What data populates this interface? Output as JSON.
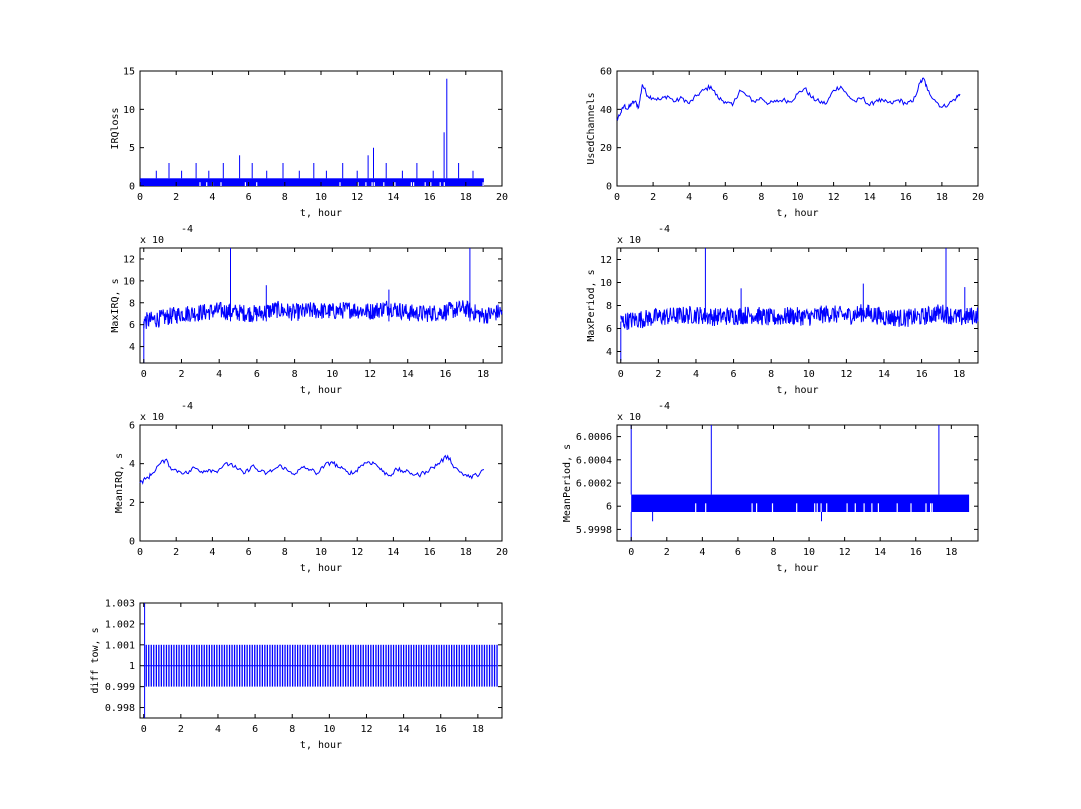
{
  "chart_data": [
    {
      "id": "irq-loss",
      "type": "line",
      "xlabel": "t, hour",
      "ylabel": "IRQloss",
      "exponent_label": "",
      "xlim": [
        0,
        20
      ],
      "ylim": [
        0,
        15
      ],
      "xticks": [
        0,
        2,
        4,
        6,
        8,
        10,
        12,
        14,
        16,
        18,
        20
      ],
      "yticks": [
        0,
        5,
        10,
        15
      ],
      "ytick_labels": [
        "0",
        "5",
        "10",
        "15"
      ],
      "x_end": 19,
      "band": [
        0,
        1
      ],
      "spikes": [
        [
          0.9,
          2
        ],
        [
          1.6,
          3
        ],
        [
          2.3,
          2
        ],
        [
          3.1,
          3
        ],
        [
          3.8,
          2
        ],
        [
          4.6,
          3
        ],
        [
          5.5,
          4
        ],
        [
          6.2,
          3
        ],
        [
          7.0,
          2
        ],
        [
          7.9,
          3
        ],
        [
          8.8,
          2
        ],
        [
          9.6,
          3
        ],
        [
          10.3,
          2
        ],
        [
          11.2,
          3
        ],
        [
          12.0,
          2
        ],
        [
          12.6,
          4
        ],
        [
          12.9,
          5
        ],
        [
          13.6,
          3
        ],
        [
          14.5,
          2
        ],
        [
          15.3,
          3
        ],
        [
          16.2,
          2
        ],
        [
          16.8,
          7
        ],
        [
          16.95,
          14
        ],
        [
          17.6,
          3
        ],
        [
          18.4,
          2
        ]
      ]
    },
    {
      "id": "used-channels",
      "type": "line",
      "xlabel": "t, hour",
      "ylabel": "UsedChannels",
      "exponent_label": "",
      "xlim": [
        0,
        20
      ],
      "ylim": [
        0,
        60
      ],
      "xticks": [
        0,
        2,
        4,
        6,
        8,
        10,
        12,
        14,
        16,
        18,
        20
      ],
      "yticks": [
        0,
        20,
        40,
        60
      ],
      "ytick_labels": [
        "0",
        "20",
        "40",
        "60"
      ],
      "x": [
        0,
        0.2,
        0.4,
        0.6,
        0.8,
        1.0,
        1.2,
        1.4,
        1.7,
        2.0,
        2.4,
        2.8,
        3.2,
        3.6,
        4.0,
        4.4,
        4.8,
        5.2,
        5.6,
        6.0,
        6.4,
        6.8,
        7.2,
        7.6,
        8.0,
        8.4,
        8.8,
        9.2,
        9.6,
        10.0,
        10.4,
        10.8,
        11.2,
        11.6,
        12.0,
        12.4,
        12.8,
        13.2,
        13.6,
        14.0,
        14.4,
        14.8,
        15.2,
        15.6,
        16.0,
        16.4,
        16.8,
        17.0,
        17.2,
        17.6,
        18.0,
        18.4,
        18.8,
        19.0
      ],
      "y": [
        35,
        38,
        42,
        40,
        43,
        44,
        41,
        53,
        47,
        46,
        45,
        47,
        44,
        46,
        43,
        47,
        50,
        52,
        46,
        44,
        42,
        50,
        47,
        44,
        46,
        43,
        44,
        45,
        44,
        48,
        51,
        46,
        44,
        43,
        50,
        52,
        47,
        44,
        46,
        42,
        45,
        44,
        43,
        45,
        43,
        44,
        54,
        56,
        50,
        45,
        41,
        43,
        46,
        48
      ]
    },
    {
      "id": "max-irq",
      "type": "line",
      "xlabel": "t, hour",
      "ylabel": "MaxIRQ, s",
      "exponent_label": "x 10",
      "exponent_power": "-4",
      "xlim": [
        -0.2,
        19
      ],
      "ylim": [
        2.5,
        13
      ],
      "xticks": [
        0,
        2,
        4,
        6,
        8,
        10,
        12,
        14,
        16,
        18
      ],
      "yticks": [
        4,
        6,
        8,
        10,
        12
      ],
      "ytick_labels": [
        "4",
        "6",
        "8",
        "10",
        "12"
      ],
      "x_end": 19,
      "center": [
        [
          0,
          6.3
        ],
        [
          1,
          6.6
        ],
        [
          2,
          7.0
        ],
        [
          3,
          7.1
        ],
        [
          4,
          7.3
        ],
        [
          5,
          7.1
        ],
        [
          6,
          7.0
        ],
        [
          7,
          7.4
        ],
        [
          8,
          7.1
        ],
        [
          9,
          7.3
        ],
        [
          10,
          7.2
        ],
        [
          11,
          7.4
        ],
        [
          12,
          7.2
        ],
        [
          13,
          7.6
        ],
        [
          14,
          7.1
        ],
        [
          15,
          7.0
        ],
        [
          16,
          7.2
        ],
        [
          17,
          7.5
        ],
        [
          18,
          6.8
        ],
        [
          19,
          7.2
        ]
      ],
      "spread": 0.8,
      "spikes": [
        [
          0.0,
          2.5
        ],
        [
          4.6,
          13
        ],
        [
          6.5,
          9.6
        ],
        [
          17.3,
          13
        ],
        [
          13.0,
          9.2
        ]
      ]
    },
    {
      "id": "max-period",
      "type": "line",
      "xlabel": "t, hour",
      "ylabel": "MaxPeriod, s",
      "exponent_label": "x 10",
      "exponent_power": "-4",
      "xlim": [
        -0.2,
        19
      ],
      "ylim": [
        3,
        13
      ],
      "xticks": [
        0,
        2,
        4,
        6,
        8,
        10,
        12,
        14,
        16,
        18
      ],
      "yticks": [
        4,
        6,
        8,
        10,
        12
      ],
      "ytick_labels": [
        "4",
        "6",
        "8",
        "10",
        "12"
      ],
      "x_end": 19,
      "center": [
        [
          0,
          6.6
        ],
        [
          1,
          6.8
        ],
        [
          2,
          7.0
        ],
        [
          3,
          7.1
        ],
        [
          4,
          7.2
        ],
        [
          5,
          7.0
        ],
        [
          6,
          7.1
        ],
        [
          7,
          7.2
        ],
        [
          8,
          6.9
        ],
        [
          9,
          7.1
        ],
        [
          10,
          7.0
        ],
        [
          11,
          7.3
        ],
        [
          12,
          7.1
        ],
        [
          13,
          7.4
        ],
        [
          14,
          7.0
        ],
        [
          15,
          6.9
        ],
        [
          16,
          7.0
        ],
        [
          17,
          7.4
        ],
        [
          18,
          6.9
        ],
        [
          19,
          7.2
        ]
      ],
      "spread": 0.8,
      "spikes": [
        [
          0.0,
          3.2
        ],
        [
          4.5,
          13
        ],
        [
          6.4,
          9.5
        ],
        [
          12.9,
          9.9
        ],
        [
          17.3,
          13
        ],
        [
          18.3,
          9.6
        ]
      ]
    },
    {
      "id": "mean-irq",
      "type": "line",
      "xlabel": "t, hour",
      "ylabel": "MeanIRQ, s",
      "exponent_label": "x 10",
      "exponent_power": "-4",
      "xlim": [
        0,
        20
      ],
      "ylim": [
        0,
        6
      ],
      "xticks": [
        0,
        2,
        4,
        6,
        8,
        10,
        12,
        14,
        16,
        18,
        20
      ],
      "yticks": [
        0,
        2,
        4,
        6
      ],
      "ytick_labels": [
        "0",
        "2",
        "4",
        "6"
      ],
      "x": [
        0,
        0.3,
        0.6,
        1.0,
        1.4,
        1.8,
        2.2,
        2.6,
        3.0,
        3.4,
        3.8,
        4.2,
        4.6,
        5.0,
        5.4,
        5.8,
        6.2,
        6.6,
        7.0,
        7.4,
        7.8,
        8.2,
        8.6,
        9.0,
        9.4,
        9.8,
        10.2,
        10.6,
        11.0,
        11.4,
        11.8,
        12.2,
        12.6,
        13.0,
        13.4,
        13.8,
        14.2,
        14.6,
        15.0,
        15.4,
        15.8,
        16.2,
        16.6,
        17.0,
        17.4,
        17.8,
        18.2,
        18.6,
        19.0
      ],
      "y": [
        3.0,
        3.2,
        3.4,
        3.9,
        4.2,
        3.7,
        3.6,
        3.5,
        3.8,
        3.6,
        3.7,
        3.6,
        3.9,
        4.0,
        3.7,
        3.5,
        3.9,
        3.6,
        3.5,
        3.7,
        3.9,
        3.6,
        3.5,
        3.8,
        3.7,
        3.5,
        3.9,
        4.1,
        3.8,
        3.6,
        3.5,
        3.9,
        4.1,
        4.0,
        3.6,
        3.4,
        3.7,
        3.6,
        3.5,
        3.4,
        3.6,
        3.8,
        4.1,
        4.4,
        3.8,
        3.5,
        3.3,
        3.4,
        3.7
      ]
    },
    {
      "id": "mean-period",
      "type": "line",
      "xlabel": "t, hour",
      "ylabel": "MeanPeriod, s",
      "exponent_label": "x 10",
      "exponent_power": "-4",
      "xlim": [
        -0.8,
        19.5
      ],
      "ylim": [
        5.9997,
        6.0007
      ],
      "xticks": [
        0,
        2,
        4,
        6,
        8,
        10,
        12,
        14,
        16,
        18
      ],
      "yticks": [
        5.9998,
        6.0,
        6.0002,
        6.0004,
        6.0006
      ],
      "ytick_labels": [
        "5.9998",
        "6",
        "6.0002",
        "6.0004",
        "6.0006"
      ],
      "x_end": 19.0,
      "band": [
        5.99995,
        6.0001
      ],
      "spikes": [
        [
          0.0,
          6.0007
        ],
        [
          4.5,
          6.0007
        ],
        [
          17.3,
          6.0007
        ]
      ],
      "dips": [
        [
          0.0,
          5.9997
        ],
        [
          1.2,
          5.99987
        ],
        [
          10.7,
          5.99987
        ]
      ]
    },
    {
      "id": "diff-tow",
      "type": "line",
      "xlabel": "t, hour",
      "ylabel": "diff tow, s",
      "exponent_label": "",
      "xlim": [
        -0.2,
        19.3
      ],
      "ylim": [
        0.9975,
        1.003
      ],
      "xticks": [
        0,
        2,
        4,
        6,
        8,
        10,
        12,
        14,
        16,
        18
      ],
      "yticks": [
        0.998,
        0.999,
        1.0,
        1.001,
        1.002,
        1.003
      ],
      "ytick_labels": [
        "0.998",
        "0.999",
        "1",
        "1.001",
        "1.002",
        "1.003"
      ],
      "x_end": 19.0,
      "baseline": 1.0,
      "pulse_low": 0.999,
      "pulse_high": 1.001,
      "pulse_count": 140,
      "spikes": [
        [
          0.05,
          1.003
        ]
      ],
      "dips": [
        [
          0.05,
          0.9975
        ]
      ]
    }
  ]
}
